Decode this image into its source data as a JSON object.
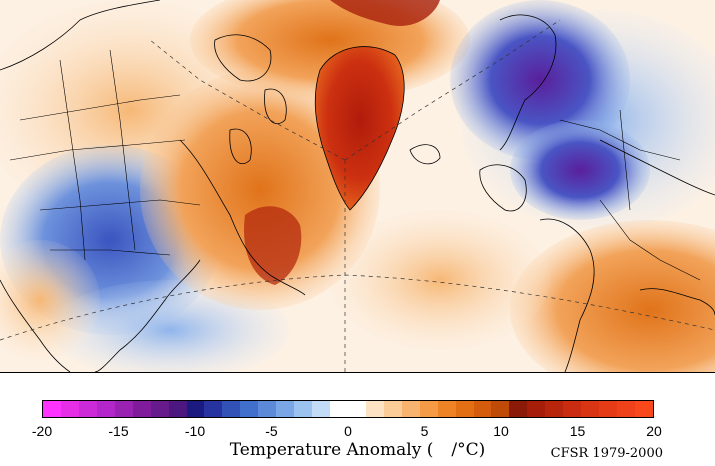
{
  "map": {
    "region": "North Atlantic / Arctic",
    "land_outline_color": "#000000",
    "graticule_color": "#333333",
    "greenland_color": "#c0220f",
    "europe_cold_color": "#7a2bb0"
  },
  "colorbar": {
    "min": -20,
    "max": 20,
    "ticks": [
      "-20",
      "-15",
      "-10",
      "-5",
      "0",
      "5",
      "10",
      "15",
      "20"
    ],
    "tick_values": [
      -20,
      -15,
      -10,
      -5,
      0,
      5,
      10,
      15,
      20
    ],
    "colors": [
      "#ff33ff",
      "#e62ee6",
      "#cc29d9",
      "#b326c9",
      "#9922b3",
      "#801c9c",
      "#661a8c",
      "#4d1780",
      "#1a1a80",
      "#2633a0",
      "#3352b8",
      "#4070cc",
      "#5c8ad9",
      "#7aa6e6",
      "#9cc2f0",
      "#c2dcf7",
      "#ffffff",
      "#ffffff",
      "#fde3c4",
      "#fbcb98",
      "#f8b36e",
      "#f59a45",
      "#ee8325",
      "#e26f13",
      "#d45c0c",
      "#c04a08",
      "#8c1a08",
      "#a61e0a",
      "#b8250d",
      "#c92c10",
      "#d93414",
      "#e63b17",
      "#f0421a",
      "#f8481c"
    ]
  },
  "title": {
    "prefix": "Temperature Anomaly (",
    "suffix": "/°C)"
  },
  "credit": "CFSR 1979-2000"
}
